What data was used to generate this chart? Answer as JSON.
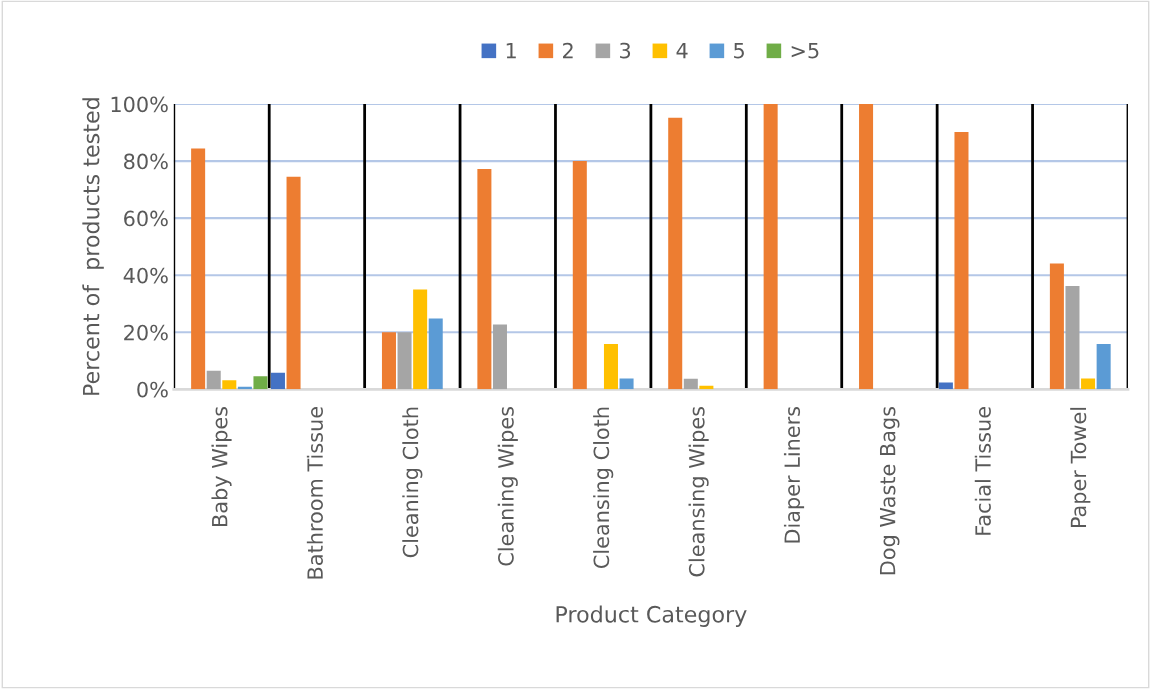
{
  "chart_data": {
    "type": "bar",
    "xlabel": "Product Category",
    "ylabel": "Percent of  products tested",
    "categories": [
      "Baby Wipes",
      "Bathroom Tissue",
      "Cleaning Cloth",
      "Cleaning Wipes",
      "Cleansing Cloth",
      "Cleansing Wipes",
      "Diaper Liners",
      "Dog Waste Bags",
      "Facial Tissue",
      "Paper Towel"
    ],
    "series": [
      {
        "name": "1",
        "color": "#4472c4",
        "values": [
          0,
          5.8,
          0,
          0,
          0,
          0,
          0,
          0,
          2.4,
          0
        ]
      },
      {
        "name": "2",
        "color": "#ed7d31",
        "values": [
          84.4,
          74.5,
          20,
          77.2,
          80,
          95.2,
          100,
          100,
          90.2,
          44.1
        ]
      },
      {
        "name": "3",
        "color": "#a5a5a5",
        "values": [
          6.5,
          0,
          20,
          22.7,
          0,
          3.7,
          0,
          0,
          0,
          36.2
        ]
      },
      {
        "name": "4",
        "color": "#ffc000",
        "values": [
          3.2,
          0,
          35,
          0,
          15.9,
          1.2,
          0,
          0,
          0,
          3.8
        ]
      },
      {
        "name": "5",
        "color": "#5b9bd5",
        "values": [
          0.9,
          0,
          24.8,
          0,
          3.8,
          0,
          0,
          0,
          0,
          15.9
        ]
      },
      {
        "name": ">5",
        "color": "#70ad47",
        "values": [
          4.6,
          0,
          0,
          0,
          0,
          0,
          0,
          0,
          0,
          0
        ]
      }
    ],
    "ylim": [
      0,
      100
    ],
    "yticks": [
      {
        "value": 0,
        "label": "0%"
      },
      {
        "value": 20,
        "label": "20%"
      },
      {
        "value": 40,
        "label": "40%"
      },
      {
        "value": 60,
        "label": "60%"
      },
      {
        "value": 80,
        "label": "80%"
      },
      {
        "value": 100,
        "label": "100%"
      }
    ],
    "grid": true,
    "legend": "top"
  }
}
